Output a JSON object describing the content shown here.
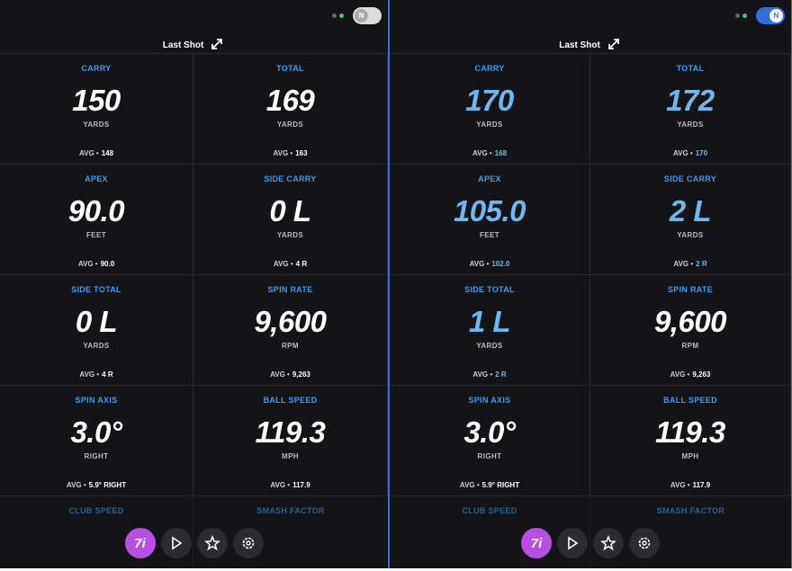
{
  "panels": [
    {
      "toggle": {
        "label": "N",
        "on": false
      },
      "title": "Last Shot",
      "cells": [
        {
          "label": "CARRY",
          "value": "150",
          "unit": "YARDS",
          "avg_label": "AVG •",
          "avg": "148",
          "highlight": false
        },
        {
          "label": "TOTAL",
          "value": "169",
          "unit": "YARDS",
          "avg_label": "AVG •",
          "avg": "163",
          "highlight": false
        },
        {
          "label": "APEX",
          "value": "90.0",
          "unit": "FEET",
          "avg_label": "AVG •",
          "avg": "90.0",
          "highlight": false
        },
        {
          "label": "SIDE CARRY",
          "value": "0 L",
          "unit": "YARDS",
          "avg_label": "AVG •",
          "avg": "4 R",
          "highlight": false
        },
        {
          "label": "SIDE TOTAL",
          "value": "0 L",
          "unit": "YARDS",
          "avg_label": "AVG •",
          "avg": "4 R",
          "highlight": false
        },
        {
          "label": "SPIN RATE",
          "value": "9,600",
          "unit": "RPM",
          "avg_label": "AVG •",
          "avg": "9,263",
          "highlight": false
        },
        {
          "label": "SPIN AXIS",
          "value": "3.0°",
          "unit": "RIGHT",
          "avg_label": "AVG •",
          "avg": "5.9° RIGHT",
          "highlight": false
        },
        {
          "label": "BALL SPEED",
          "value": "119.3",
          "unit": "MPH",
          "avg_label": "AVG •",
          "avg": "117.9",
          "highlight": false
        }
      ],
      "faded": [
        "CLUB SPEED",
        "SMASH FACTOR"
      ],
      "club": "7i"
    },
    {
      "toggle": {
        "label": "N",
        "on": true
      },
      "title": "Last Shot",
      "cells": [
        {
          "label": "CARRY",
          "value": "170",
          "unit": "YARDS",
          "avg_label": "AVG •",
          "avg": "168",
          "highlight": true
        },
        {
          "label": "TOTAL",
          "value": "172",
          "unit": "YARDS",
          "avg_label": "AVG •",
          "avg": "170",
          "highlight": true
        },
        {
          "label": "APEX",
          "value": "105.0",
          "unit": "FEET",
          "avg_label": "AVG •",
          "avg": "102.0",
          "highlight": true
        },
        {
          "label": "SIDE CARRY",
          "value": "2 L",
          "unit": "YARDS",
          "avg_label": "AVG •",
          "avg": "2 R",
          "highlight": true
        },
        {
          "label": "SIDE TOTAL",
          "value": "1 L",
          "unit": "YARDS",
          "avg_label": "AVG •",
          "avg": "2 R",
          "highlight": true
        },
        {
          "label": "SPIN RATE",
          "value": "9,600",
          "unit": "RPM",
          "avg_label": "AVG •",
          "avg": "9,263",
          "highlight": false
        },
        {
          "label": "SPIN AXIS",
          "value": "3.0°",
          "unit": "RIGHT",
          "avg_label": "AVG •",
          "avg": "5.9° RIGHT",
          "highlight": false
        },
        {
          "label": "BALL SPEED",
          "value": "119.3",
          "unit": "MPH",
          "avg_label": "AVG •",
          "avg": "117.9",
          "highlight": false
        }
      ],
      "faded": [
        "CLUB SPEED",
        "SMASH FACTOR"
      ],
      "club": "7i"
    }
  ]
}
